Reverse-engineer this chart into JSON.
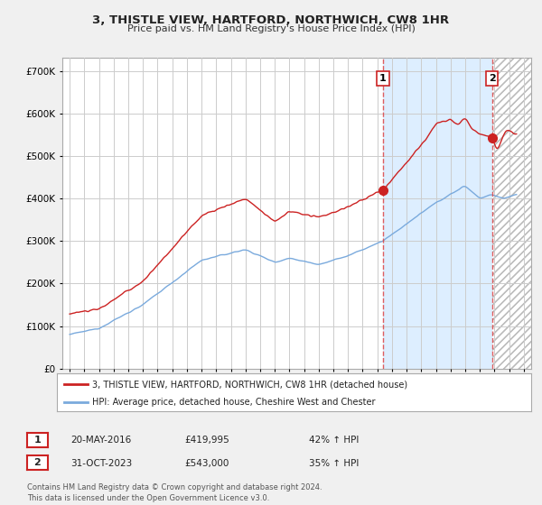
{
  "title": "3, THISTLE VIEW, HARTFORD, NORTHWICH, CW8 1HR",
  "subtitle": "Price paid vs. HM Land Registry's House Price Index (HPI)",
  "legend_line1": "3, THISTLE VIEW, HARTFORD, NORTHWICH, CW8 1HR (detached house)",
  "legend_line2": "HPI: Average price, detached house, Cheshire West and Chester",
  "red_color": "#cc2222",
  "blue_color": "#7aaadd",
  "dashed_color": "#dd4444",
  "marker1_year": 2016.38,
  "marker1_value": 419995,
  "marker1_label": "1",
  "marker2_year": 2023.83,
  "marker2_value": 543000,
  "marker2_label": "2",
  "annotation1_date": "20-MAY-2016",
  "annotation1_price": "£419,995",
  "annotation1_hpi": "42% ↑ HPI",
  "annotation2_date": "31-OCT-2023",
  "annotation2_price": "£543,000",
  "annotation2_hpi": "35% ↑ HPI",
  "footer1": "Contains HM Land Registry data © Crown copyright and database right 2024.",
  "footer2": "This data is licensed under the Open Government Licence v3.0.",
  "ylim": [
    0,
    730000
  ],
  "yticks": [
    0,
    100000,
    200000,
    300000,
    400000,
    500000,
    600000,
    700000
  ],
  "xmin": 1994.5,
  "xmax": 2026.5,
  "background_color": "#f0f0f0",
  "plot_bg": "#ffffff",
  "highlight_bg": "#ddeeff",
  "grid_color": "#cccccc",
  "hatch_color": "#cccccc"
}
